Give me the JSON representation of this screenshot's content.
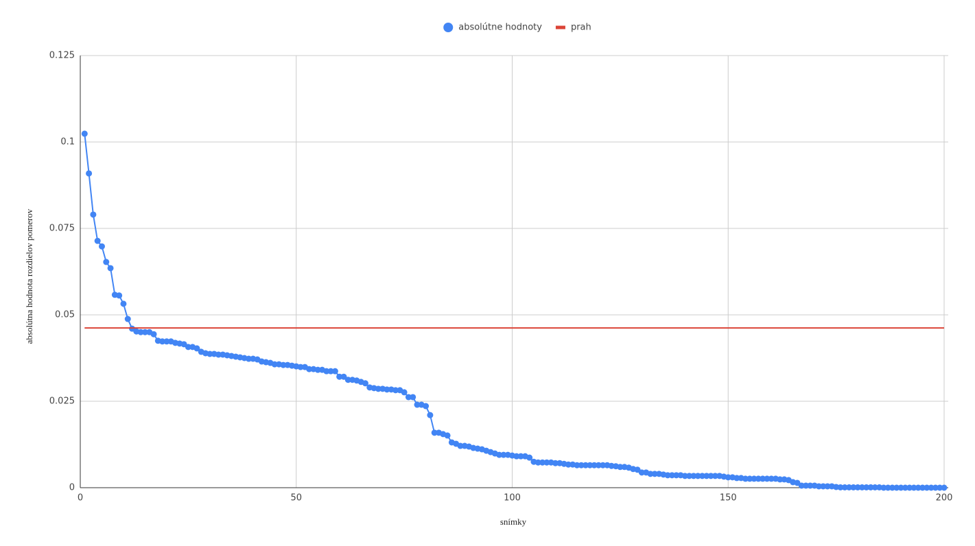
{
  "chart_data": {
    "type": "line",
    "x_label": "snímky",
    "y_label": "absolútna hodnota rozdielov pomerov",
    "x": [
      1,
      2,
      3,
      4,
      5,
      6,
      7,
      8,
      9,
      10,
      11,
      12,
      13,
      14,
      15,
      16,
      17,
      18,
      19,
      20,
      21,
      22,
      23,
      24,
      25,
      26,
      27,
      28,
      29,
      30,
      31,
      32,
      33,
      34,
      35,
      36,
      37,
      38,
      39,
      40,
      41,
      42,
      43,
      44,
      45,
      46,
      47,
      48,
      49,
      50,
      51,
      52,
      53,
      54,
      55,
      56,
      57,
      58,
      59,
      60,
      61,
      62,
      63,
      64,
      65,
      66,
      67,
      68,
      69,
      70,
      71,
      72,
      73,
      74,
      75,
      76,
      77,
      78,
      79,
      80,
      81,
      82,
      83,
      84,
      85,
      86,
      87,
      88,
      89,
      90,
      91,
      92,
      93,
      94,
      95,
      96,
      97,
      98,
      99,
      100,
      101,
      102,
      103,
      104,
      105,
      106,
      107,
      108,
      109,
      110,
      111,
      112,
      113,
      114,
      115,
      116,
      117,
      118,
      119,
      120,
      121,
      122,
      123,
      124,
      125,
      126,
      127,
      128,
      129,
      130,
      131,
      132,
      133,
      134,
      135,
      136,
      137,
      138,
      139,
      140,
      141,
      142,
      143,
      144,
      145,
      146,
      147,
      148,
      149,
      150,
      151,
      152,
      153,
      154,
      155,
      156,
      157,
      158,
      159,
      160,
      161,
      162,
      163,
      164,
      165,
      166,
      167,
      168,
      169,
      170,
      171,
      172,
      173,
      174,
      175,
      176,
      177,
      178,
      179,
      180,
      181,
      182,
      183,
      184,
      185,
      186,
      187,
      188,
      189,
      190,
      191,
      192,
      193,
      194,
      195,
      196,
      197,
      198,
      199,
      200
    ],
    "series": [
      {
        "name": "absolútne hodnoty",
        "color": "#4285f4",
        "points": true,
        "values": [
          0.1024,
          0.0909,
          0.079,
          0.0714,
          0.0698,
          0.0653,
          0.0635,
          0.0558,
          0.0556,
          0.0532,
          0.0488,
          0.046,
          0.0452,
          0.045,
          0.045,
          0.045,
          0.0444,
          0.0425,
          0.0423,
          0.0423,
          0.0423,
          0.0419,
          0.0417,
          0.0415,
          0.0407,
          0.0407,
          0.0403,
          0.0393,
          0.0389,
          0.0387,
          0.0387,
          0.0385,
          0.0385,
          0.0383,
          0.0381,
          0.0379,
          0.0377,
          0.0375,
          0.0373,
          0.0373,
          0.0371,
          0.0365,
          0.0363,
          0.0361,
          0.0357,
          0.0357,
          0.0355,
          0.0355,
          0.0353,
          0.0351,
          0.0349,
          0.0349,
          0.0343,
          0.0343,
          0.0341,
          0.0341,
          0.0337,
          0.0337,
          0.0337,
          0.0321,
          0.0321,
          0.0312,
          0.0312,
          0.031,
          0.0306,
          0.0302,
          0.029,
          0.0288,
          0.0286,
          0.0286,
          0.0284,
          0.0284,
          0.0282,
          0.0282,
          0.0276,
          0.0262,
          0.0262,
          0.024,
          0.024,
          0.0236,
          0.021,
          0.0159,
          0.0159,
          0.0155,
          0.0151,
          0.0131,
          0.0127,
          0.0121,
          0.0121,
          0.0119,
          0.0115,
          0.0113,
          0.0111,
          0.0107,
          0.0103,
          0.0099,
          0.0095,
          0.0095,
          0.0095,
          0.0093,
          0.0091,
          0.0091,
          0.0091,
          0.0087,
          0.0075,
          0.0073,
          0.0073,
          0.0073,
          0.0073,
          0.0071,
          0.0071,
          0.0069,
          0.0067,
          0.0067,
          0.0065,
          0.0065,
          0.0065,
          0.0065,
          0.0065,
          0.0065,
          0.0065,
          0.0065,
          0.0063,
          0.0062,
          0.006,
          0.006,
          0.0058,
          0.0054,
          0.0052,
          0.0044,
          0.0044,
          0.004,
          0.004,
          0.004,
          0.0038,
          0.0036,
          0.0036,
          0.0036,
          0.0036,
          0.0034,
          0.0034,
          0.0034,
          0.0034,
          0.0034,
          0.0034,
          0.0034,
          0.0034,
          0.0034,
          0.0032,
          0.003,
          0.003,
          0.0028,
          0.0028,
          0.0026,
          0.0026,
          0.0026,
          0.0026,
          0.0026,
          0.0026,
          0.0026,
          0.0026,
          0.0024,
          0.0024,
          0.0022,
          0.0016,
          0.0014,
          0.0006,
          0.0006,
          0.0006,
          0.0006,
          0.0004,
          0.0004,
          0.0004,
          0.0004,
          0.0002,
          0.0001,
          0.0001,
          0.0001,
          0.0001,
          0.0001,
          0.0001,
          0.0001,
          0.0001,
          0.0001,
          0.0001,
          0,
          0,
          0,
          0,
          0,
          0,
          0,
          0,
          0,
          0,
          0,
          0,
          0,
          0,
          0
        ]
      },
      {
        "name": "prah",
        "color": "#db4437",
        "points": false,
        "x": [
          1,
          200
        ],
        "values": [
          0.0462,
          0.0462
        ]
      }
    ],
    "xlim": [
      0,
      200
    ],
    "xticks": [
      0,
      50,
      100,
      150,
      200
    ],
    "ylim": [
      0,
      0.125
    ],
    "yticks": [
      0,
      0.025,
      0.05,
      0.075,
      0.1,
      0.125
    ],
    "grid": true,
    "legend": "top"
  }
}
